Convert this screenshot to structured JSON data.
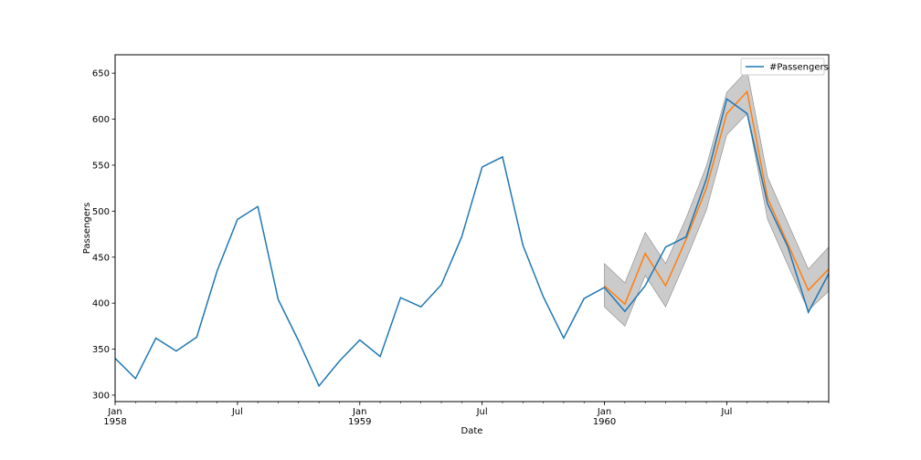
{
  "chart_data": {
    "type": "line",
    "xlabel": "Date",
    "ylabel": "Passengers",
    "x": [
      "1958-01",
      "1958-02",
      "1958-03",
      "1958-04",
      "1958-05",
      "1958-06",
      "1958-07",
      "1958-08",
      "1958-09",
      "1958-10",
      "1958-11",
      "1958-12",
      "1959-01",
      "1959-02",
      "1959-03",
      "1959-04",
      "1959-05",
      "1959-06",
      "1959-07",
      "1959-08",
      "1959-09",
      "1959-10",
      "1959-11",
      "1959-12",
      "1960-01",
      "1960-02",
      "1960-03",
      "1960-04",
      "1960-05",
      "1960-06",
      "1960-07",
      "1960-08",
      "1960-09",
      "1960-10",
      "1960-11",
      "1960-12"
    ],
    "xlim": [
      "1958-01",
      "1960-12"
    ],
    "ylim": [
      293,
      670
    ],
    "yticks": [
      300,
      350,
      400,
      450,
      500,
      550,
      600,
      650
    ],
    "xticks_major": [
      {
        "x": "1958-01",
        "label": "Jan",
        "sublabel": "1958"
      },
      {
        "x": "1958-07",
        "label": "Jul",
        "sublabel": ""
      },
      {
        "x": "1959-01",
        "label": "Jan",
        "sublabel": "1959"
      },
      {
        "x": "1959-07",
        "label": "Jul",
        "sublabel": ""
      },
      {
        "x": "1960-01",
        "label": "Jan",
        "sublabel": "1960"
      },
      {
        "x": "1960-07",
        "label": "Jul",
        "sublabel": ""
      }
    ],
    "grid": false,
    "legend": {
      "placement": "top-right",
      "entries": [
        "#Passengers"
      ]
    },
    "series": [
      {
        "name": "#Passengers",
        "color": "#1f77b4",
        "x": [
          "1958-01",
          "1958-02",
          "1958-03",
          "1958-04",
          "1958-05",
          "1958-06",
          "1958-07",
          "1958-08",
          "1958-09",
          "1958-10",
          "1958-11",
          "1958-12",
          "1959-01",
          "1959-02",
          "1959-03",
          "1959-04",
          "1959-05",
          "1959-06",
          "1959-07",
          "1959-08",
          "1959-09",
          "1959-10",
          "1959-11",
          "1959-12",
          "1960-01",
          "1960-02",
          "1960-03",
          "1960-04",
          "1960-05",
          "1960-06",
          "1960-07",
          "1960-08",
          "1960-09",
          "1960-10",
          "1960-11",
          "1960-12"
        ],
        "values": [
          340,
          318,
          362,
          348,
          363,
          435,
          491,
          505,
          404,
          359,
          310,
          337,
          360,
          342,
          406,
          396,
          420,
          472,
          548,
          559,
          463,
          407,
          362,
          405,
          417,
          391,
          419,
          461,
          472,
          535,
          622,
          606,
          508,
          461,
          390,
          432
        ]
      },
      {
        "name": "",
        "color": "#ff7f0e",
        "x": [
          "1960-01",
          "1960-02",
          "1960-03",
          "1960-04",
          "1960-05",
          "1960-06",
          "1960-07",
          "1960-08",
          "1960-09",
          "1960-10",
          "1960-11",
          "1960-12"
        ],
        "values": [
          419,
          399,
          454,
          419,
          469,
          525,
          606,
          630,
          514,
          464,
          414,
          437
        ],
        "band_lower": [
          396,
          375,
          430,
          396,
          447,
          501,
          583,
          606,
          491,
          441,
          392,
          413
        ],
        "band_upper": [
          443,
          422,
          477,
          443,
          492,
          549,
          629,
          653,
          537,
          487,
          437,
          461
        ],
        "band_color": "#a0a0a0"
      }
    ]
  }
}
